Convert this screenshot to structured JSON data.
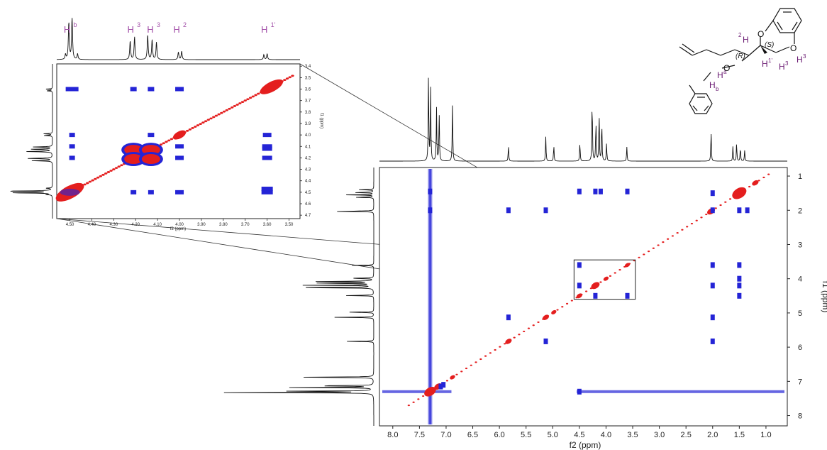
{
  "chart_data": [
    {
      "type": "heatmap",
      "name": "main-noesy",
      "xlabel": "f2 (ppm)",
      "ylabel": "f1 (ppm)",
      "xlim": [
        8.25,
        0.6
      ],
      "ylim": [
        0.75,
        8.3
      ],
      "x_ticks": [
        8.0,
        7.5,
        7.0,
        6.5,
        6.0,
        5.5,
        5.0,
        4.5,
        4.0,
        3.5,
        3.0,
        2.5,
        2.0,
        1.5,
        1.0
      ],
      "x_tick_labels": [
        "8.0",
        "7.5",
        "7.0",
        "6.5",
        "6.0",
        "5.5",
        "5.0",
        "4.5",
        "4.0",
        "3.5",
        "3.0",
        "2.5",
        "2.0",
        "1.5",
        "1.0"
      ],
      "y_ticks": [
        1,
        2,
        3,
        4,
        5,
        6,
        7,
        8
      ],
      "y_tick_labels": [
        "1",
        "2",
        "3",
        "4",
        "5",
        "6",
        "7",
        "8"
      ],
      "projection_peaks": [
        {
          "ppm": 7.33,
          "h": 1.0
        },
        {
          "ppm": 7.29,
          "h": 0.8
        },
        {
          "ppm": 7.18,
          "h": 0.6
        },
        {
          "ppm": 7.13,
          "h": 0.55
        },
        {
          "ppm": 6.88,
          "h": 0.65
        },
        {
          "ppm": 5.83,
          "h": 0.18
        },
        {
          "ppm": 5.13,
          "h": 0.27
        },
        {
          "ppm": 4.98,
          "h": 0.18
        },
        {
          "ppm": 4.49,
          "h": 0.22
        },
        {
          "ppm": 4.26,
          "h": 0.72
        },
        {
          "ppm": 4.19,
          "h": 0.47
        },
        {
          "ppm": 4.13,
          "h": 0.54
        },
        {
          "ppm": 4.08,
          "h": 0.46
        },
        {
          "ppm": 3.99,
          "h": 0.2
        },
        {
          "ppm": 3.61,
          "h": 0.16
        },
        {
          "ppm": 2.03,
          "h": 0.33
        },
        {
          "ppm": 1.62,
          "h": 0.16
        },
        {
          "ppm": 1.55,
          "h": 0.2
        },
        {
          "ppm": 1.48,
          "h": 0.16
        },
        {
          "ppm": 1.4,
          "h": 0.12
        }
      ],
      "diagonal_peaks": [
        {
          "ppm": 7.3,
          "size": 1.8
        },
        {
          "ppm": 7.15,
          "size": 1.2
        },
        {
          "ppm": 6.88,
          "size": 0.8
        },
        {
          "ppm": 5.83,
          "size": 1.0
        },
        {
          "ppm": 5.13,
          "size": 1.0
        },
        {
          "ppm": 4.98,
          "size": 0.8
        },
        {
          "ppm": 4.5,
          "size": 0.9
        },
        {
          "ppm": 4.2,
          "size": 1.3
        },
        {
          "ppm": 4.0,
          "size": 0.8
        },
        {
          "ppm": 3.6,
          "size": 0.8
        },
        {
          "ppm": 2.03,
          "size": 1.2
        },
        {
          "ppm": 1.5,
          "size": 2.2
        },
        {
          "ppm": 1.2,
          "size": 1.0
        }
      ],
      "cross_peaks": [
        {
          "x": 7.3,
          "y": 1.45
        },
        {
          "x": 7.3,
          "y": 2.0
        },
        {
          "x": 5.83,
          "y": 2.0
        },
        {
          "x": 5.13,
          "y": 2.0
        },
        {
          "x": 4.5,
          "y": 1.45
        },
        {
          "x": 4.2,
          "y": 1.45
        },
        {
          "x": 4.1,
          "y": 1.45
        },
        {
          "x": 3.6,
          "y": 1.45
        },
        {
          "x": 2.0,
          "y": 1.5
        },
        {
          "x": 2.0,
          "y": 2.0
        },
        {
          "x": 1.5,
          "y": 2.0
        },
        {
          "x": 1.35,
          "y": 2.0
        },
        {
          "x": 4.5,
          "y": 3.6
        },
        {
          "x": 4.5,
          "y": 4.2
        },
        {
          "x": 3.6,
          "y": 4.5
        },
        {
          "x": 4.2,
          "y": 4.5
        },
        {
          "x": 1.5,
          "y": 3.6
        },
        {
          "x": 1.5,
          "y": 4.0
        },
        {
          "x": 1.5,
          "y": 4.2
        },
        {
          "x": 1.5,
          "y": 4.5
        },
        {
          "x": 2.0,
          "y": 3.6
        },
        {
          "x": 2.0,
          "y": 4.2
        },
        {
          "x": 2.0,
          "y": 5.13
        },
        {
          "x": 2.0,
          "y": 5.83
        },
        {
          "x": 5.83,
          "y": 5.13
        },
        {
          "x": 5.13,
          "y": 5.83
        },
        {
          "x": 4.5,
          "y": 7.3
        },
        {
          "x": 7.1,
          "y": 7.15
        },
        {
          "x": 7.05,
          "y": 7.1
        }
      ],
      "vertical_stripe_ppm": 7.3,
      "horizontal_stripe_ppm": 7.3,
      "zoom_box": {
        "x1": 4.6,
        "x2": 3.45,
        "y1": 3.45,
        "y2": 4.6
      }
    },
    {
      "type": "heatmap",
      "name": "inset-noesy-zoom",
      "xlabel": "f2 (ppm)",
      "ylabel": "f1 (ppm)",
      "xlim": [
        4.56,
        3.45
      ],
      "ylim": [
        3.38,
        4.73
      ],
      "x_ticks": [
        4.5,
        4.4,
        4.3,
        4.2,
        4.1,
        4.0,
        3.9,
        3.8,
        3.7,
        3.6,
        3.5
      ],
      "x_tick_labels": [
        "4.50",
        "4.40",
        "4.30",
        "4.20",
        "4.10",
        "4.00",
        "3.90",
        "3.80",
        "3.70",
        "3.60",
        "3.50"
      ],
      "y_ticks": [
        3.4,
        3.5,
        3.6,
        3.7,
        3.8,
        3.9,
        4.0,
        4.1,
        4.2,
        4.3,
        4.4,
        4.5,
        4.6,
        4.7
      ],
      "y_tick_labels": [
        "3.4",
        "3.5",
        "3.6",
        "3.7",
        "3.8",
        "3.9",
        "4.0",
        "4.1",
        "4.2",
        "4.3",
        "4.4",
        "4.5",
        "4.6",
        "4.7"
      ],
      "projection_peaks": [
        {
          "ppm": 4.505,
          "h": 0.9
        },
        {
          "ppm": 4.49,
          "h": 1.0
        },
        {
          "ppm": 4.52,
          "h": 0.12
        },
        {
          "ppm": 4.465,
          "h": 0.14
        },
        {
          "ppm": 4.225,
          "h": 0.45
        },
        {
          "ppm": 4.205,
          "h": 0.55
        },
        {
          "ppm": 4.145,
          "h": 0.6
        },
        {
          "ppm": 4.125,
          "h": 0.48
        },
        {
          "ppm": 4.105,
          "h": 0.42
        },
        {
          "ppm": 4.005,
          "h": 0.18
        },
        {
          "ppm": 3.99,
          "h": 0.2
        },
        {
          "ppm": 3.615,
          "h": 0.12
        },
        {
          "ppm": 3.6,
          "h": 0.14
        }
      ],
      "labels": [
        {
          "ppm": 4.5,
          "base": "H",
          "sup": "b"
        },
        {
          "ppm": 4.21,
          "base": "H",
          "sup": "3"
        },
        {
          "ppm": 4.12,
          "base": "H",
          "sup": "3"
        },
        {
          "ppm": 4.0,
          "base": "H",
          "sup": "2"
        },
        {
          "ppm": 3.6,
          "base": "H",
          "sup": "1'"
        }
      ]
    }
  ],
  "molecule": {
    "atoms": {
      "o_top": "O",
      "o_right": "O",
      "o_mid": "O"
    },
    "h": {
      "h2": "H",
      "h1p": "H",
      "h3": "H",
      "h3b": "H",
      "ha": "H",
      "hb": "H"
    },
    "sub": {
      "h2": "2",
      "h1p": "1'",
      "h3": "3",
      "h3b": "3",
      "ha": "a",
      "hb": "b"
    },
    "stereo": {
      "r": "(R)",
      "s": "(S)"
    }
  },
  "colors": {
    "positive": "#e41e1e",
    "negative": "#2424d6",
    "trace": "#111111",
    "label": "#a24fa8",
    "h_atom": "#6a1a72"
  }
}
